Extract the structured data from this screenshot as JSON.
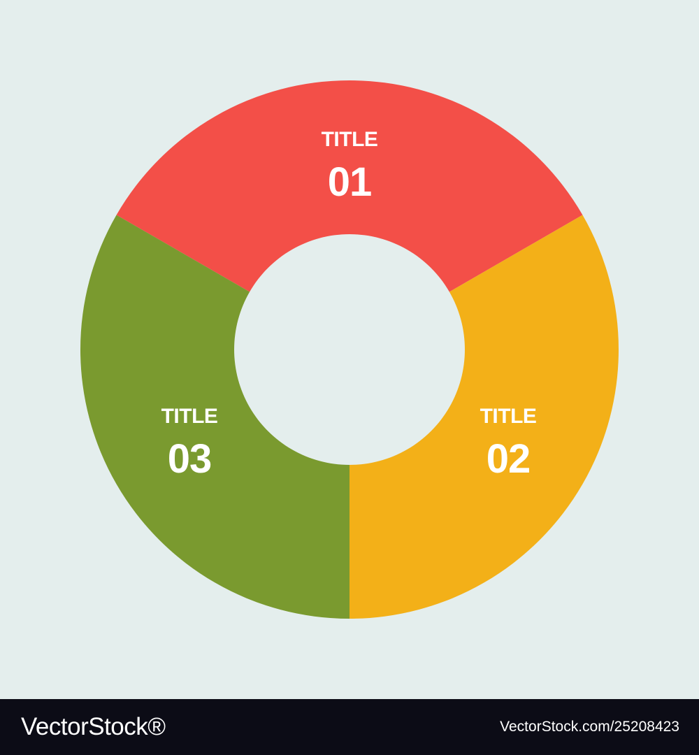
{
  "segments": [
    {
      "title": "TITLE",
      "number": "01",
      "color": "#f34f48"
    },
    {
      "title": "TITLE",
      "number": "02",
      "color": "#f3b018"
    },
    {
      "title": "TITLE",
      "number": "03",
      "color": "#7a9a2f"
    }
  ],
  "background_color": "#e4eeed",
  "footer": {
    "brand": "VectorStock®",
    "image_id": "VectorStock.com/25208423",
    "background_color": "#0c0c16"
  }
}
